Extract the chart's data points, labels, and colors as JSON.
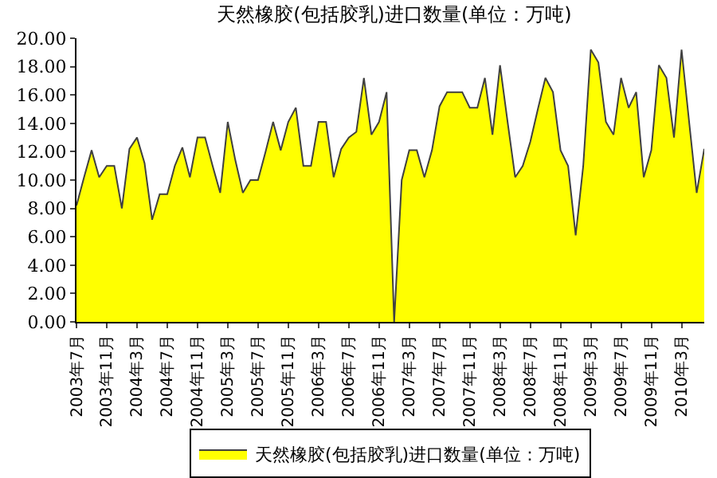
{
  "chart_data": {
    "type": "area",
    "title": "天然橡胶(包括胶乳)进口数量(单位：万吨)",
    "categories": [
      "2003年7月",
      null,
      null,
      null,
      "2003年11月",
      null,
      null,
      null,
      "2004年3月",
      null,
      null,
      null,
      "2004年7月",
      null,
      null,
      null,
      "2004年11月",
      null,
      null,
      null,
      "2005年3月",
      null,
      null,
      null,
      "2005年7月",
      null,
      null,
      null,
      "2005年11月",
      null,
      null,
      null,
      "2006年3月",
      null,
      null,
      null,
      "2006年7月",
      null,
      null,
      null,
      "2006年11月",
      null,
      null,
      null,
      "2007年3月",
      null,
      null,
      null,
      "2007年7月",
      null,
      null,
      null,
      "2007年11月",
      null,
      null,
      null,
      "2008年3月",
      null,
      null,
      null,
      "2008年7月",
      null,
      null,
      null,
      "2008年11月",
      null,
      null,
      null,
      "2009年3月",
      null,
      null,
      null,
      "2009年7月",
      null,
      null,
      null,
      "2009年11月",
      null,
      null,
      null,
      "2010年3月",
      null,
      null,
      null
    ],
    "series": [
      {
        "name": "天然橡胶(包括胶乳)进口数量(单位：万吨)",
        "color": "#ffff00",
        "values": [
          8.2,
          10.2,
          12.1,
          10.2,
          11,
          11,
          8,
          12.2,
          13,
          11.2,
          7.2,
          9,
          9,
          11,
          12.3,
          10.2,
          13,
          13,
          11,
          9.1,
          14.1,
          11.4,
          9.1,
          10,
          10,
          12,
          14.1,
          12.1,
          14.1,
          15.1,
          11,
          11,
          14.1,
          14.1,
          10.2,
          12.2,
          13,
          13.4,
          17.2,
          13.2,
          14.1,
          16.2,
          0,
          10,
          12.1,
          12.1,
          10.2,
          12.1,
          15.2,
          16.2,
          16.2,
          16.2,
          15.1,
          15.1,
          17.2,
          13.2,
          18.1,
          14.1,
          10.2,
          11,
          12.7,
          15,
          17.2,
          16.2,
          12.1,
          11,
          6.1,
          11,
          19.2,
          18.3,
          14.1,
          13.2,
          17.2,
          15.1,
          16.2,
          10.2,
          12.1,
          18.1,
          17.2,
          13,
          19.2,
          14.1,
          9.1,
          12.2
        ]
      }
    ],
    "ylim": [
      0,
      20
    ],
    "yticks": [
      {
        "value": 0,
        "label": "0.00"
      },
      {
        "value": 2,
        "label": "2.00"
      },
      {
        "value": 4,
        "label": "4.00"
      },
      {
        "value": 6,
        "label": "6.00"
      },
      {
        "value": 8,
        "label": "8.00"
      },
      {
        "value": 10,
        "label": "10.00"
      },
      {
        "value": 12,
        "label": "12.00"
      },
      {
        "value": 14,
        "label": "14.00"
      },
      {
        "value": 16,
        "label": "16.00"
      },
      {
        "value": 18,
        "label": "18.00"
      },
      {
        "value": 20,
        "label": "20.00"
      }
    ],
    "legend": "bottom"
  }
}
